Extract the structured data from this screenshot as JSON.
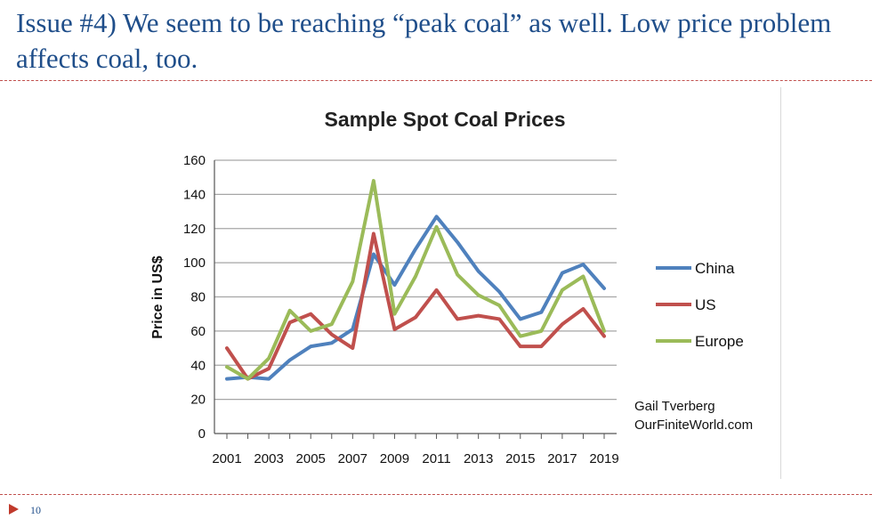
{
  "slide": {
    "title": "Issue #4) We seem to be reaching “peak coal” as well. Low price problem affects coal, too.",
    "page_number": "10"
  },
  "colors": {
    "title": "#1f4e8a",
    "rule": "#c0504d",
    "footer_arrow": "#c0392b"
  },
  "chart_data": {
    "type": "line",
    "title": "Sample Spot Coal Prices",
    "ylabel": "Price in US$",
    "xlabel": "",
    "ylim": [
      0,
      160
    ],
    "yticks": [
      0,
      20,
      40,
      60,
      80,
      100,
      120,
      140,
      160
    ],
    "x": [
      2001,
      2002,
      2003,
      2004,
      2005,
      2006,
      2007,
      2008,
      2009,
      2010,
      2011,
      2012,
      2013,
      2014,
      2015,
      2016,
      2017,
      2018,
      2019
    ],
    "xtick_labels": [
      "2001",
      "2003",
      "2005",
      "2007",
      "2009",
      "2011",
      "2013",
      "2015",
      "2017",
      "2019"
    ],
    "grid": "horizontal",
    "legend_position": "right",
    "series": [
      {
        "name": "China",
        "color": "#4f81bd",
        "values": [
          32,
          33,
          32,
          43,
          51,
          53,
          61,
          105,
          87,
          108,
          127,
          112,
          95,
          83,
          67,
          71,
          94,
          99,
          85
        ]
      },
      {
        "name": "US",
        "color": "#c0504d",
        "values": [
          50,
          32,
          38,
          65,
          70,
          58,
          50,
          117,
          61,
          68,
          84,
          67,
          69,
          67,
          51,
          51,
          64,
          73,
          57
        ]
      },
      {
        "name": "Europe",
        "color": "#9bbb59",
        "values": [
          39,
          32,
          44,
          72,
          60,
          64,
          89,
          148,
          70,
          92,
          121,
          93,
          81,
          75,
          57,
          60,
          84,
          92,
          60
        ]
      }
    ],
    "credit": [
      "Gail Tverberg",
      "OurFiniteWorld.com"
    ]
  }
}
